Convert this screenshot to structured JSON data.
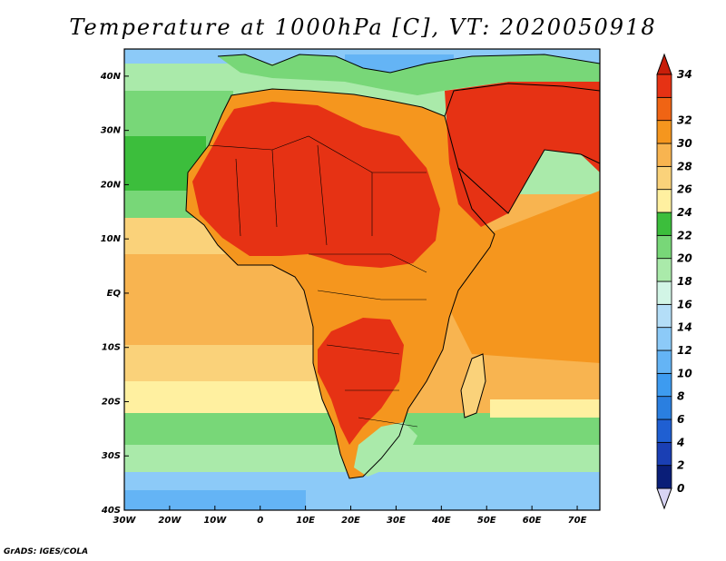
{
  "title": "Temperature at 1000hPa [C], VT: 2020050918",
  "credit": "GrADS: IGES/COLA",
  "map": {
    "lat_range": [
      -40,
      45
    ],
    "lon_range": [
      -30,
      75
    ],
    "lat_ticks": [
      {
        "value": 40,
        "label": "40N"
      },
      {
        "value": 30,
        "label": "30N"
      },
      {
        "value": 20,
        "label": "20N"
      },
      {
        "value": 10,
        "label": "10N"
      },
      {
        "value": 0,
        "label": "EQ"
      },
      {
        "value": -10,
        "label": "10S"
      },
      {
        "value": -20,
        "label": "20S"
      },
      {
        "value": -30,
        "label": "30S"
      },
      {
        "value": -40,
        "label": "40S"
      }
    ],
    "lon_ticks": [
      {
        "value": -30,
        "label": "30W"
      },
      {
        "value": -20,
        "label": "20W"
      },
      {
        "value": -10,
        "label": "10W"
      },
      {
        "value": 0,
        "label": "0"
      },
      {
        "value": 10,
        "label": "10E"
      },
      {
        "value": 20,
        "label": "20E"
      },
      {
        "value": 30,
        "label": "30E"
      },
      {
        "value": 40,
        "label": "40E"
      },
      {
        "value": 50,
        "label": "50E"
      },
      {
        "value": 60,
        "label": "60E"
      },
      {
        "value": 70,
        "label": "70E"
      }
    ]
  },
  "colorbar": {
    "levels": [
      {
        "label": "0",
        "color": "#0a1e78"
      },
      {
        "label": "2",
        "color": "#1a3fb4"
      },
      {
        "label": "4",
        "color": "#1f5fd2"
      },
      {
        "label": "6",
        "color": "#2a7fe0"
      },
      {
        "label": "8",
        "color": "#3d9bf0"
      },
      {
        "label": "10",
        "color": "#64b4f5"
      },
      {
        "label": "12",
        "color": "#8ccaf8"
      },
      {
        "label": "14",
        "color": "#b4def8"
      },
      {
        "label": "16",
        "color": "#d2f5e6"
      },
      {
        "label": "18",
        "color": "#aaeaaa"
      },
      {
        "label": "20",
        "color": "#78d778"
      },
      {
        "label": "22",
        "color": "#3cbe3c"
      },
      {
        "label": "24",
        "color": "#fff0a0"
      },
      {
        "label": "26",
        "color": "#fad27a"
      },
      {
        "label": "28",
        "color": "#f8b450"
      },
      {
        "label": "30",
        "color": "#f5961e"
      },
      {
        "label": "32",
        "color": "#f06414"
      },
      {
        "label": "34",
        "color": "#e63214"
      }
    ],
    "top_color": "#c81e0a"
  }
}
